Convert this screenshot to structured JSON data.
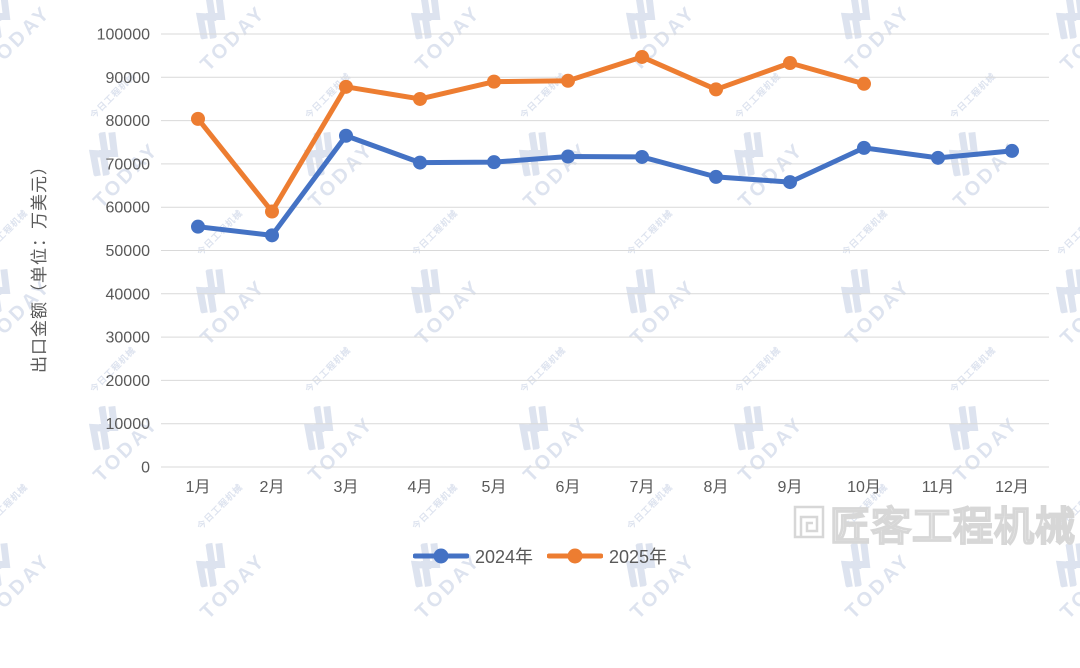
{
  "chart_data": {
    "type": "line",
    "title": "",
    "xlabel": "",
    "ylabel": "出口金额（单位：万美元）",
    "categories": [
      "1月",
      "2月",
      "3月",
      "4月",
      "5月",
      "6月",
      "7月",
      "8月",
      "9月",
      "10月",
      "11月",
      "12月"
    ],
    "series": [
      {
        "name": "2024年",
        "color": "#4472C4",
        "values": [
          55500,
          53500,
          76500,
          70300,
          70400,
          71700,
          71600,
          67000,
          65800,
          73700,
          71400,
          73000
        ]
      },
      {
        "name": "2025年",
        "color": "#ED7D31",
        "values": [
          80400,
          59000,
          87800,
          85000,
          89000,
          89200,
          94700,
          87200,
          93300,
          88500,
          null,
          null
        ]
      }
    ],
    "ylim": [
      0,
      100000
    ],
    "ytick_step": 10000,
    "ytick_labels": [
      "0",
      "10000",
      "20000",
      "30000",
      "40000",
      "50000",
      "60000",
      "70000",
      "80000",
      "90000",
      "100000"
    ],
    "grid": true,
    "legend_position": "bottom"
  },
  "watermark": {
    "brand_en": "TODAY",
    "brand_cn_small": "今日工程机械",
    "corner_brand": "匠客工程机械"
  },
  "colors": {
    "grid": "#D9D9D9",
    "tick_text": "#595959",
    "watermark": "#C3CDE2",
    "series_2024": "#4472C4",
    "series_2025": "#ED7D31"
  }
}
